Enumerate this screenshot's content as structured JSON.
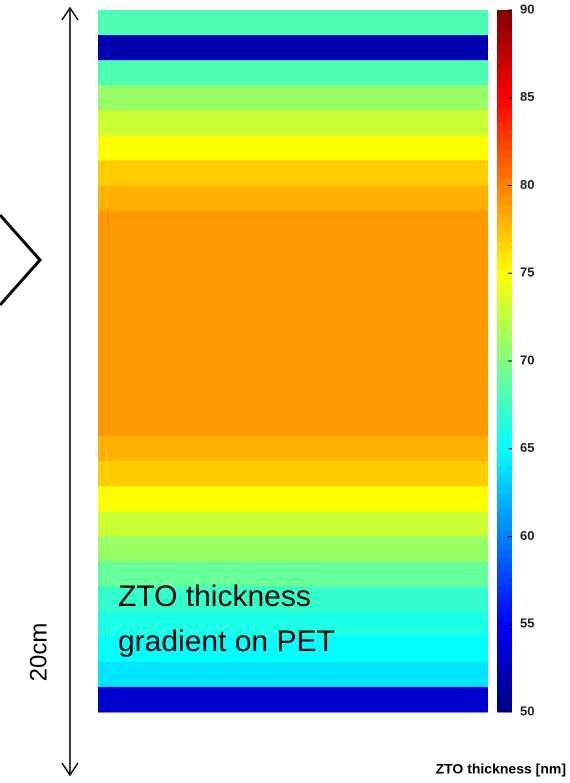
{
  "chart_data": {
    "type": "heatmap",
    "colormap": "jet",
    "values": [
      68,
      52,
      68,
      71,
      73,
      75,
      77,
      78,
      79,
      79,
      79,
      79,
      79,
      79,
      79,
      79,
      79,
      78,
      77,
      75,
      73,
      71,
      69,
      67,
      66,
      65,
      64,
      53
    ],
    "ylim": [
      50,
      90
    ],
    "yticks": [
      50,
      55,
      60,
      65,
      70,
      75,
      80,
      85,
      90
    ],
    "colorbar_label": "ZTO thickness [nm]",
    "annotation": [
      "ZTO thickness",
      "gradient on PET"
    ],
    "scale_label": "20cm"
  }
}
